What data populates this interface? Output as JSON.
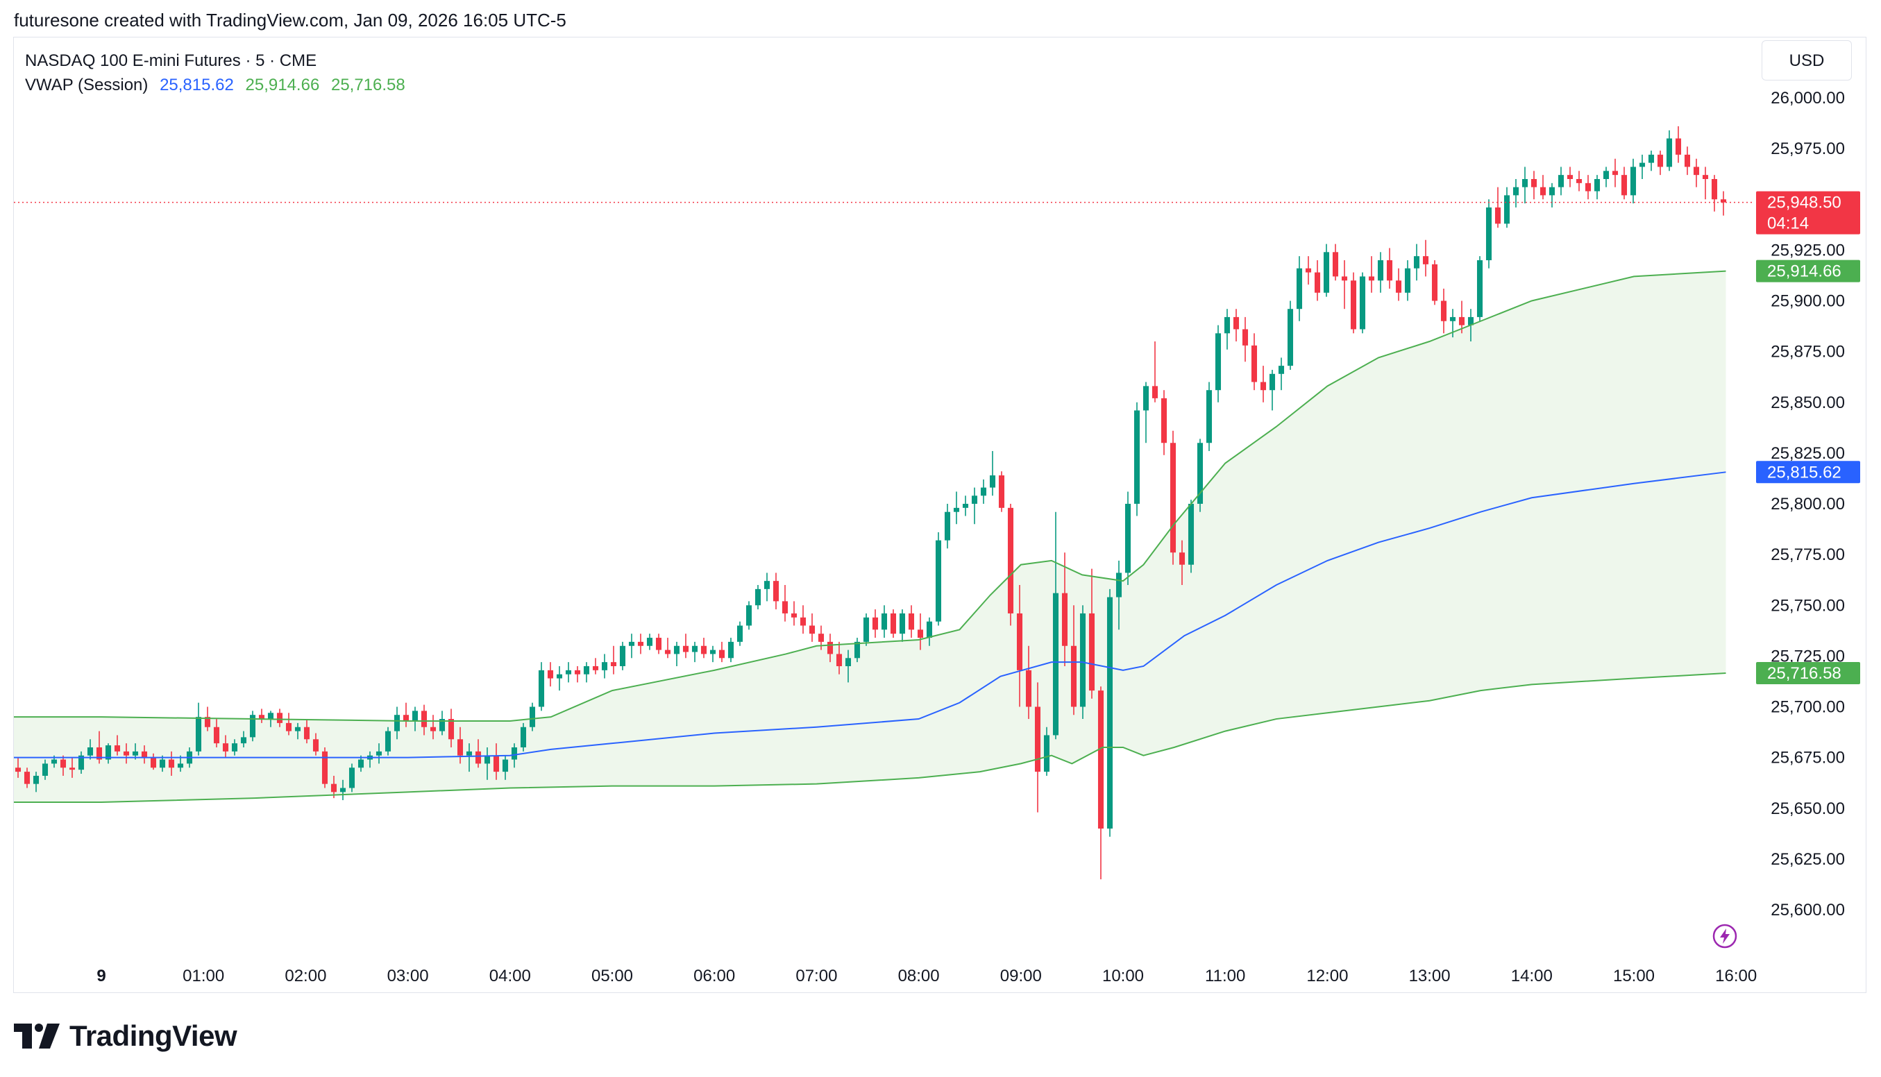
{
  "header": {
    "attribution": "futuresone created with TradingView.com, Jan 09, 2026 16:05 UTC-5"
  },
  "legend": {
    "symbol": "NASDAQ 100 E-mini Futures · 5 · CME",
    "indicator_name": "VWAP (Session)",
    "vwap_value": "25,815.62",
    "upper_value": "25,914.66",
    "lower_value": "25,716.58"
  },
  "currency": "USD",
  "brand": "TradingView",
  "colors": {
    "up": "#089981",
    "down": "#f23645",
    "vwap": "#2962ff",
    "band": "#4caf50",
    "band_fill": "#eef7ec",
    "grid_text": "#131722"
  },
  "chart_data": {
    "type": "candlestick",
    "title": "NASDAQ 100 E-mini Futures · 5 · CME",
    "interval": "5",
    "y_ticks": [
      "26,000.00",
      "25,975.00",
      "25,925.00",
      "25,900.00",
      "25,875.00",
      "25,850.00",
      "25,825.00",
      "25,800.00",
      "25,775.00",
      "25,750.00",
      "25,725.00",
      "25,700.00",
      "25,675.00",
      "25,650.00",
      "25,625.00",
      "25,600.00"
    ],
    "y_tick_values": [
      26000,
      25975,
      25925,
      25900,
      25875,
      25850,
      25825,
      25800,
      25775,
      25750,
      25725,
      25700,
      25675,
      25650,
      25625,
      25600
    ],
    "x_ticks": [
      "9",
      "01:00",
      "02:00",
      "03:00",
      "04:00",
      "05:00",
      "06:00",
      "07:00",
      "08:00",
      "09:00",
      "10:00",
      "11:00",
      "12:00",
      "13:00",
      "14:00",
      "15:00",
      "16:00"
    ],
    "x_tick_hours": [
      0,
      1,
      2,
      3,
      4,
      5,
      6,
      7,
      8,
      9,
      10,
      11,
      12,
      13,
      14,
      15,
      16
    ],
    "ylim": [
      25582,
      26044
    ],
    "last_price": "25,948.50",
    "last_price_value": 25948.5,
    "countdown": "04:14",
    "vwap_label": "25,815.62",
    "upper_label": "25,914.66",
    "lower_label": "25,716.58",
    "vwap_points": [
      [
        0,
        25675
      ],
      [
        1.5,
        25675
      ],
      [
        3,
        25675
      ],
      [
        4,
        25676
      ],
      [
        4.4,
        25679
      ],
      [
        5,
        25682
      ],
      [
        6,
        25687
      ],
      [
        7,
        25690
      ],
      [
        8,
        25694
      ],
      [
        8.4,
        25702
      ],
      [
        8.8,
        25715
      ],
      [
        9.3,
        25722
      ],
      [
        9.6,
        25722
      ],
      [
        10,
        25718
      ],
      [
        10.2,
        25720
      ],
      [
        10.6,
        25735
      ],
      [
        11,
        25745
      ],
      [
        11.5,
        25760
      ],
      [
        12,
        25772
      ],
      [
        12.5,
        25781
      ],
      [
        13,
        25788
      ],
      [
        13.5,
        25796
      ],
      [
        14,
        25803
      ],
      [
        15,
        25810
      ],
      [
        15.9,
        25815.62
      ]
    ],
    "upper_points": [
      [
        0,
        25695
      ],
      [
        1.5,
        25694
      ],
      [
        3,
        25693
      ],
      [
        4,
        25693
      ],
      [
        4.4,
        25695
      ],
      [
        5,
        25708
      ],
      [
        6,
        25718
      ],
      [
        6.7,
        25726
      ],
      [
        7,
        25730
      ],
      [
        8,
        25733
      ],
      [
        8.4,
        25738
      ],
      [
        8.7,
        25755
      ],
      [
        9,
        25770
      ],
      [
        9.3,
        25772
      ],
      [
        9.6,
        25765
      ],
      [
        10,
        25762
      ],
      [
        10.2,
        25770
      ],
      [
        10.5,
        25790
      ],
      [
        11,
        25820
      ],
      [
        11.5,
        25838
      ],
      [
        12,
        25858
      ],
      [
        12.5,
        25872
      ],
      [
        13,
        25880
      ],
      [
        13.5,
        25890
      ],
      [
        14,
        25900
      ],
      [
        15,
        25912
      ],
      [
        15.9,
        25914.66
      ]
    ],
    "lower_points": [
      [
        0,
        25653
      ],
      [
        1.5,
        25655
      ],
      [
        3,
        25658
      ],
      [
        4,
        25660
      ],
      [
        5,
        25661
      ],
      [
        6,
        25661
      ],
      [
        7,
        25662
      ],
      [
        8,
        25665
      ],
      [
        8.6,
        25668
      ],
      [
        9,
        25672
      ],
      [
        9.3,
        25676
      ],
      [
        9.5,
        25672
      ],
      [
        9.8,
        25680
      ],
      [
        10,
        25680
      ],
      [
        10.2,
        25676
      ],
      [
        10.5,
        25680
      ],
      [
        11,
        25688
      ],
      [
        11.5,
        25694
      ],
      [
        12,
        25697
      ],
      [
        12.5,
        25700
      ],
      [
        13,
        25703
      ],
      [
        13.5,
        25708
      ],
      [
        14,
        25711
      ],
      [
        15,
        25714
      ],
      [
        15.9,
        25716.58
      ]
    ],
    "candles": [
      [
        25670,
        25675,
        25665,
        25668
      ],
      [
        25668,
        25670,
        25660,
        25662
      ],
      [
        25662,
        25668,
        25658,
        25666
      ],
      [
        25666,
        25674,
        25664,
        25672
      ],
      [
        25672,
        25676,
        25670,
        25674
      ],
      [
        25674,
        25676,
        25666,
        25670
      ],
      [
        25670,
        25675,
        25665,
        25669
      ],
      [
        25669,
        25678,
        25667,
        25676
      ],
      [
        25676,
        25684,
        25674,
        25680
      ],
      [
        25680,
        25688,
        25672,
        25674
      ],
      [
        25674,
        25682,
        25672,
        25681
      ],
      [
        25681,
        25686,
        25676,
        25678
      ],
      [
        25678,
        25682,
        25672,
        25676
      ],
      [
        25676,
        25682,
        25674,
        25678
      ],
      [
        25678,
        25681,
        25672,
        25675
      ],
      [
        25675,
        25677,
        25669,
        25670
      ],
      [
        25670,
        25676,
        25668,
        25674
      ],
      [
        25674,
        25678,
        25666,
        25670
      ],
      [
        25670,
        25676,
        25668,
        25672
      ],
      [
        25672,
        25680,
        25670,
        25678
      ],
      [
        25678,
        25702,
        25676,
        25695
      ],
      [
        25695,
        25700,
        25688,
        25690
      ],
      [
        25690,
        25694,
        25680,
        25682
      ],
      [
        25682,
        25686,
        25675,
        25678
      ],
      [
        25678,
        25684,
        25676,
        25682
      ],
      [
        25682,
        25688,
        25680,
        25685
      ],
      [
        25685,
        25698,
        25683,
        25696
      ],
      [
        25696,
        25699,
        25692,
        25694
      ],
      [
        25694,
        25698,
        25690,
        25697
      ],
      [
        25697,
        25699,
        25690,
        25692
      ],
      [
        25692,
        25697,
        25686,
        25688
      ],
      [
        25688,
        25692,
        25684,
        25690
      ],
      [
        25690,
        25694,
        25682,
        25684
      ],
      [
        25684,
        25687,
        25676,
        25678
      ],
      [
        25678,
        25680,
        25660,
        25662
      ],
      [
        25662,
        25666,
        25655,
        25658
      ],
      [
        25658,
        25664,
        25654,
        25660
      ],
      [
        25660,
        25672,
        25658,
        25670
      ],
      [
        25670,
        25676,
        25668,
        25674
      ],
      [
        25674,
        25678,
        25670,
        25676
      ],
      [
        25676,
        25682,
        25672,
        25678
      ],
      [
        25678,
        25690,
        25676,
        25688
      ],
      [
        25688,
        25700,
        25684,
        25696
      ],
      [
        25696,
        25702,
        25690,
        25693
      ],
      [
        25693,
        25700,
        25688,
        25698
      ],
      [
        25698,
        25701,
        25686,
        25690
      ],
      [
        25690,
        25696,
        25684,
        25688
      ],
      [
        25688,
        25698,
        25686,
        25694
      ],
      [
        25694,
        25699,
        25680,
        25684
      ],
      [
        25684,
        25690,
        25672,
        25676
      ],
      [
        25676,
        25682,
        25668,
        25678
      ],
      [
        25678,
        25684,
        25670,
        25672
      ],
      [
        25672,
        25680,
        25664,
        25676
      ],
      [
        25676,
        25682,
        25664,
        25668
      ],
      [
        25668,
        25676,
        25664,
        25674
      ],
      [
        25674,
        25682,
        25670,
        25680
      ],
      [
        25680,
        25692,
        25678,
        25690
      ],
      [
        25690,
        25702,
        25688,
        25700
      ],
      [
        25700,
        25722,
        25698,
        25718
      ],
      [
        25718,
        25722,
        25710,
        25714
      ],
      [
        25714,
        25720,
        25708,
        25716
      ],
      [
        25716,
        25722,
        25712,
        25718
      ],
      [
        25718,
        25720,
        25712,
        25716
      ],
      [
        25716,
        25722,
        25712,
        25720
      ],
      [
        25720,
        25724,
        25716,
        25718
      ],
      [
        25718,
        25726,
        25714,
        25722
      ],
      [
        25722,
        25730,
        25716,
        25720
      ],
      [
        25720,
        25732,
        25718,
        25730
      ],
      [
        25730,
        25736,
        25724,
        25732
      ],
      [
        25732,
        25736,
        25726,
        25730
      ],
      [
        25730,
        25736,
        25728,
        25734
      ],
      [
        25734,
        25736,
        25726,
        25728
      ],
      [
        25728,
        25734,
        25724,
        25726
      ],
      [
        25726,
        25732,
        25720,
        25730
      ],
      [
        25730,
        25736,
        25724,
        25727
      ],
      [
        25727,
        25732,
        25722,
        25730
      ],
      [
        25730,
        25734,
        25724,
        25726
      ],
      [
        25726,
        25730,
        25722,
        25728
      ],
      [
        25728,
        25732,
        25722,
        25724
      ],
      [
        25724,
        25734,
        25722,
        25732
      ],
      [
        25732,
        25742,
        25730,
        25740
      ],
      [
        25740,
        25752,
        25738,
        25750
      ],
      [
        25750,
        25760,
        25748,
        25758
      ],
      [
        25758,
        25766,
        25752,
        25762
      ],
      [
        25762,
        25766,
        25748,
        25752
      ],
      [
        25752,
        25760,
        25742,
        25746
      ],
      [
        25746,
        25752,
        25740,
        25744
      ],
      [
        25744,
        25750,
        25736,
        25740
      ],
      [
        25740,
        25746,
        25732,
        25736
      ],
      [
        25736,
        25740,
        25728,
        25732
      ],
      [
        25732,
        25736,
        25722,
        25726
      ],
      [
        25726,
        25732,
        25716,
        25720
      ],
      [
        25720,
        25728,
        25712,
        25724
      ],
      [
        25724,
        25734,
        25722,
        25732
      ],
      [
        25732,
        25746,
        25730,
        25744
      ],
      [
        25744,
        25748,
        25734,
        25738
      ],
      [
        25738,
        25750,
        25734,
        25746
      ],
      [
        25746,
        25748,
        25734,
        25736
      ],
      [
        25736,
        25748,
        25732,
        25746
      ],
      [
        25746,
        25750,
        25734,
        25738
      ],
      [
        25738,
        25746,
        25728,
        25734
      ],
      [
        25734,
        25744,
        25730,
        25742
      ],
      [
        25742,
        25786,
        25740,
        25782
      ],
      [
        25782,
        25800,
        25778,
        25796
      ],
      [
        25796,
        25806,
        25790,
        25798
      ],
      [
        25798,
        25804,
        25794,
        25800
      ],
      [
        25800,
        25808,
        25790,
        25804
      ],
      [
        25804,
        25812,
        25800,
        25808
      ],
      [
        25808,
        25826,
        25804,
        25814
      ],
      [
        25814,
        25816,
        25796,
        25798
      ],
      [
        25798,
        25800,
        25740,
        25746
      ],
      [
        25746,
        25760,
        25700,
        25718
      ],
      [
        25718,
        25730,
        25694,
        25700
      ],
      [
        25700,
        25712,
        25648,
        25668
      ],
      [
        25668,
        25690,
        25666,
        25686
      ],
      [
        25686,
        25796,
        25684,
        25756
      ],
      [
        25756,
        25776,
        25720,
        25730
      ],
      [
        25730,
        25750,
        25696,
        25700
      ],
      [
        25700,
        25750,
        25694,
        25746
      ],
      [
        25746,
        25768,
        25704,
        25708
      ],
      [
        25708,
        25710,
        25615,
        25640
      ],
      [
        25640,
        25758,
        25636,
        25754
      ],
      [
        25754,
        25772,
        25738,
        25766
      ],
      [
        25766,
        25806,
        25760,
        25800
      ],
      [
        25800,
        25850,
        25794,
        25846
      ],
      [
        25846,
        25860,
        25830,
        25858
      ],
      [
        25858,
        25880,
        25850,
        25852
      ],
      [
        25852,
        25856,
        25824,
        25830
      ],
      [
        25830,
        25836,
        25770,
        25776
      ],
      [
        25776,
        25782,
        25760,
        25770
      ],
      [
        25770,
        25802,
        25766,
        25800
      ],
      [
        25800,
        25832,
        25796,
        25830
      ],
      [
        25830,
        25860,
        25826,
        25856
      ],
      [
        25856,
        25888,
        25850,
        25884
      ],
      [
        25884,
        25896,
        25876,
        25892
      ],
      [
        25892,
        25896,
        25880,
        25886
      ],
      [
        25886,
        25892,
        25870,
        25878
      ],
      [
        25878,
        25884,
        25856,
        25860
      ],
      [
        25860,
        25868,
        25850,
        25856
      ],
      [
        25856,
        25866,
        25846,
        25864
      ],
      [
        25864,
        25872,
        25856,
        25868
      ],
      [
        25868,
        25900,
        25866,
        25896
      ],
      [
        25896,
        25922,
        25890,
        25916
      ],
      [
        25916,
        25922,
        25908,
        25914
      ],
      [
        25914,
        25920,
        25900,
        25904
      ],
      [
        25904,
        25928,
        25902,
        25924
      ],
      [
        25924,
        25928,
        25910,
        25912
      ],
      [
        25912,
        25920,
        25896,
        25910
      ],
      [
        25910,
        25914,
        25884,
        25886
      ],
      [
        25886,
        25914,
        25884,
        25912
      ],
      [
        25912,
        25922,
        25904,
        25910
      ],
      [
        25910,
        25924,
        25904,
        25920
      ],
      [
        25920,
        25926,
        25906,
        25910
      ],
      [
        25910,
        25916,
        25900,
        25904
      ],
      [
        25904,
        25920,
        25900,
        25916
      ],
      [
        25916,
        25928,
        25910,
        25922
      ],
      [
        25922,
        25930,
        25912,
        25918
      ],
      [
        25918,
        25920,
        25898,
        25900
      ],
      [
        25900,
        25906,
        25884,
        25890
      ],
      [
        25890,
        25896,
        25882,
        25892
      ],
      [
        25892,
        25900,
        25884,
        25888
      ],
      [
        25888,
        25896,
        25880,
        25892
      ],
      [
        25892,
        25922,
        25890,
        25920
      ],
      [
        25920,
        25950,
        25916,
        25946
      ],
      [
        25946,
        25956,
        25936,
        25938
      ],
      [
        25938,
        25956,
        25936,
        25952
      ],
      [
        25952,
        25960,
        25946,
        25956
      ],
      [
        25956,
        25966,
        25948,
        25960
      ],
      [
        25960,
        25964,
        25950,
        25956
      ],
      [
        25956,
        25962,
        25950,
        25952
      ],
      [
        25952,
        25958,
        25946,
        25956
      ],
      [
        25956,
        25966,
        25952,
        25962
      ],
      [
        25962,
        25966,
        25956,
        25960
      ],
      [
        25960,
        25964,
        25954,
        25958
      ],
      [
        25958,
        25962,
        25950,
        25954
      ],
      [
        25954,
        25962,
        25950,
        25960
      ],
      [
        25960,
        25966,
        25956,
        25964
      ],
      [
        25964,
        25970,
        25956,
        25962
      ],
      [
        25962,
        25966,
        25950,
        25952
      ],
      [
        25952,
        25970,
        25948,
        25966
      ],
      [
        25966,
        25972,
        25960,
        25968
      ],
      [
        25968,
        25974,
        25964,
        25972
      ],
      [
        25972,
        25974,
        25962,
        25966
      ],
      [
        25966,
        25984,
        25964,
        25980
      ],
      [
        25980,
        25986,
        25968,
        25972
      ],
      [
        25972,
        25976,
        25962,
        25966
      ],
      [
        25966,
        25970,
        25956,
        25962
      ],
      [
        25962,
        25966,
        25950,
        25960
      ],
      [
        25960,
        25962,
        25944,
        25950
      ],
      [
        25950,
        25954,
        25942,
        25948.5
      ]
    ]
  }
}
